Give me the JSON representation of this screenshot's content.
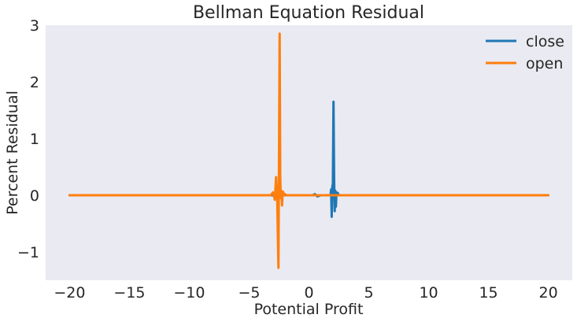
{
  "chart_data": {
    "type": "line",
    "title": "Bellman Equation Residual",
    "xlabel": "Potential Profit",
    "ylabel": "Percent Residual",
    "xlim": [
      -22,
      22
    ],
    "ylim": [
      -1.5,
      3.0
    ],
    "xticks": [
      -20,
      -15,
      -10,
      -5,
      0,
      5,
      10,
      15,
      20
    ],
    "xtick_labels": [
      "−20",
      "−15",
      "−10",
      "−5",
      "0",
      "5",
      "10",
      "15",
      "20"
    ],
    "yticks": [
      -1,
      0,
      1,
      2,
      3
    ],
    "ytick_labels": [
      "−1",
      "0",
      "1",
      "2",
      "3"
    ],
    "grid": false,
    "legend_position": "top-right",
    "series": [
      {
        "name": "close",
        "color": "#1f77b4",
        "x": [
          -20,
          -1.0,
          0.3,
          0.5,
          0.7,
          1.0,
          1.5,
          1.8,
          1.85,
          1.9,
          1.95,
          2.0,
          2.05,
          2.1,
          2.15,
          2.2,
          2.25,
          2.3,
          2.35,
          2.4,
          2.5,
          3.0,
          20
        ],
        "y": [
          0,
          0,
          0,
          0.02,
          -0.02,
          0,
          0,
          0,
          0.1,
          -0.38,
          0.15,
          0.2,
          1.65,
          0.3,
          -0.28,
          0.08,
          -0.2,
          0.05,
          0.02,
          0.04,
          0,
          0,
          0
        ]
      },
      {
        "name": "open",
        "color": "#ff7f0e",
        "x": [
          -20,
          -3.2,
          -3.0,
          -2.85,
          -2.75,
          -2.65,
          -2.55,
          -2.45,
          -2.4,
          -2.35,
          -2.3,
          -2.25,
          -2.2,
          -2.15,
          -2.1,
          -2.0,
          -1.9,
          -1.8,
          20
        ],
        "y": [
          0,
          0,
          0.05,
          -0.08,
          0.32,
          -0.1,
          -1.28,
          2.85,
          0.3,
          -0.05,
          0.08,
          -0.18,
          0.04,
          0.06,
          0.0,
          0.02,
          0.0,
          0,
          0
        ]
      }
    ]
  }
}
